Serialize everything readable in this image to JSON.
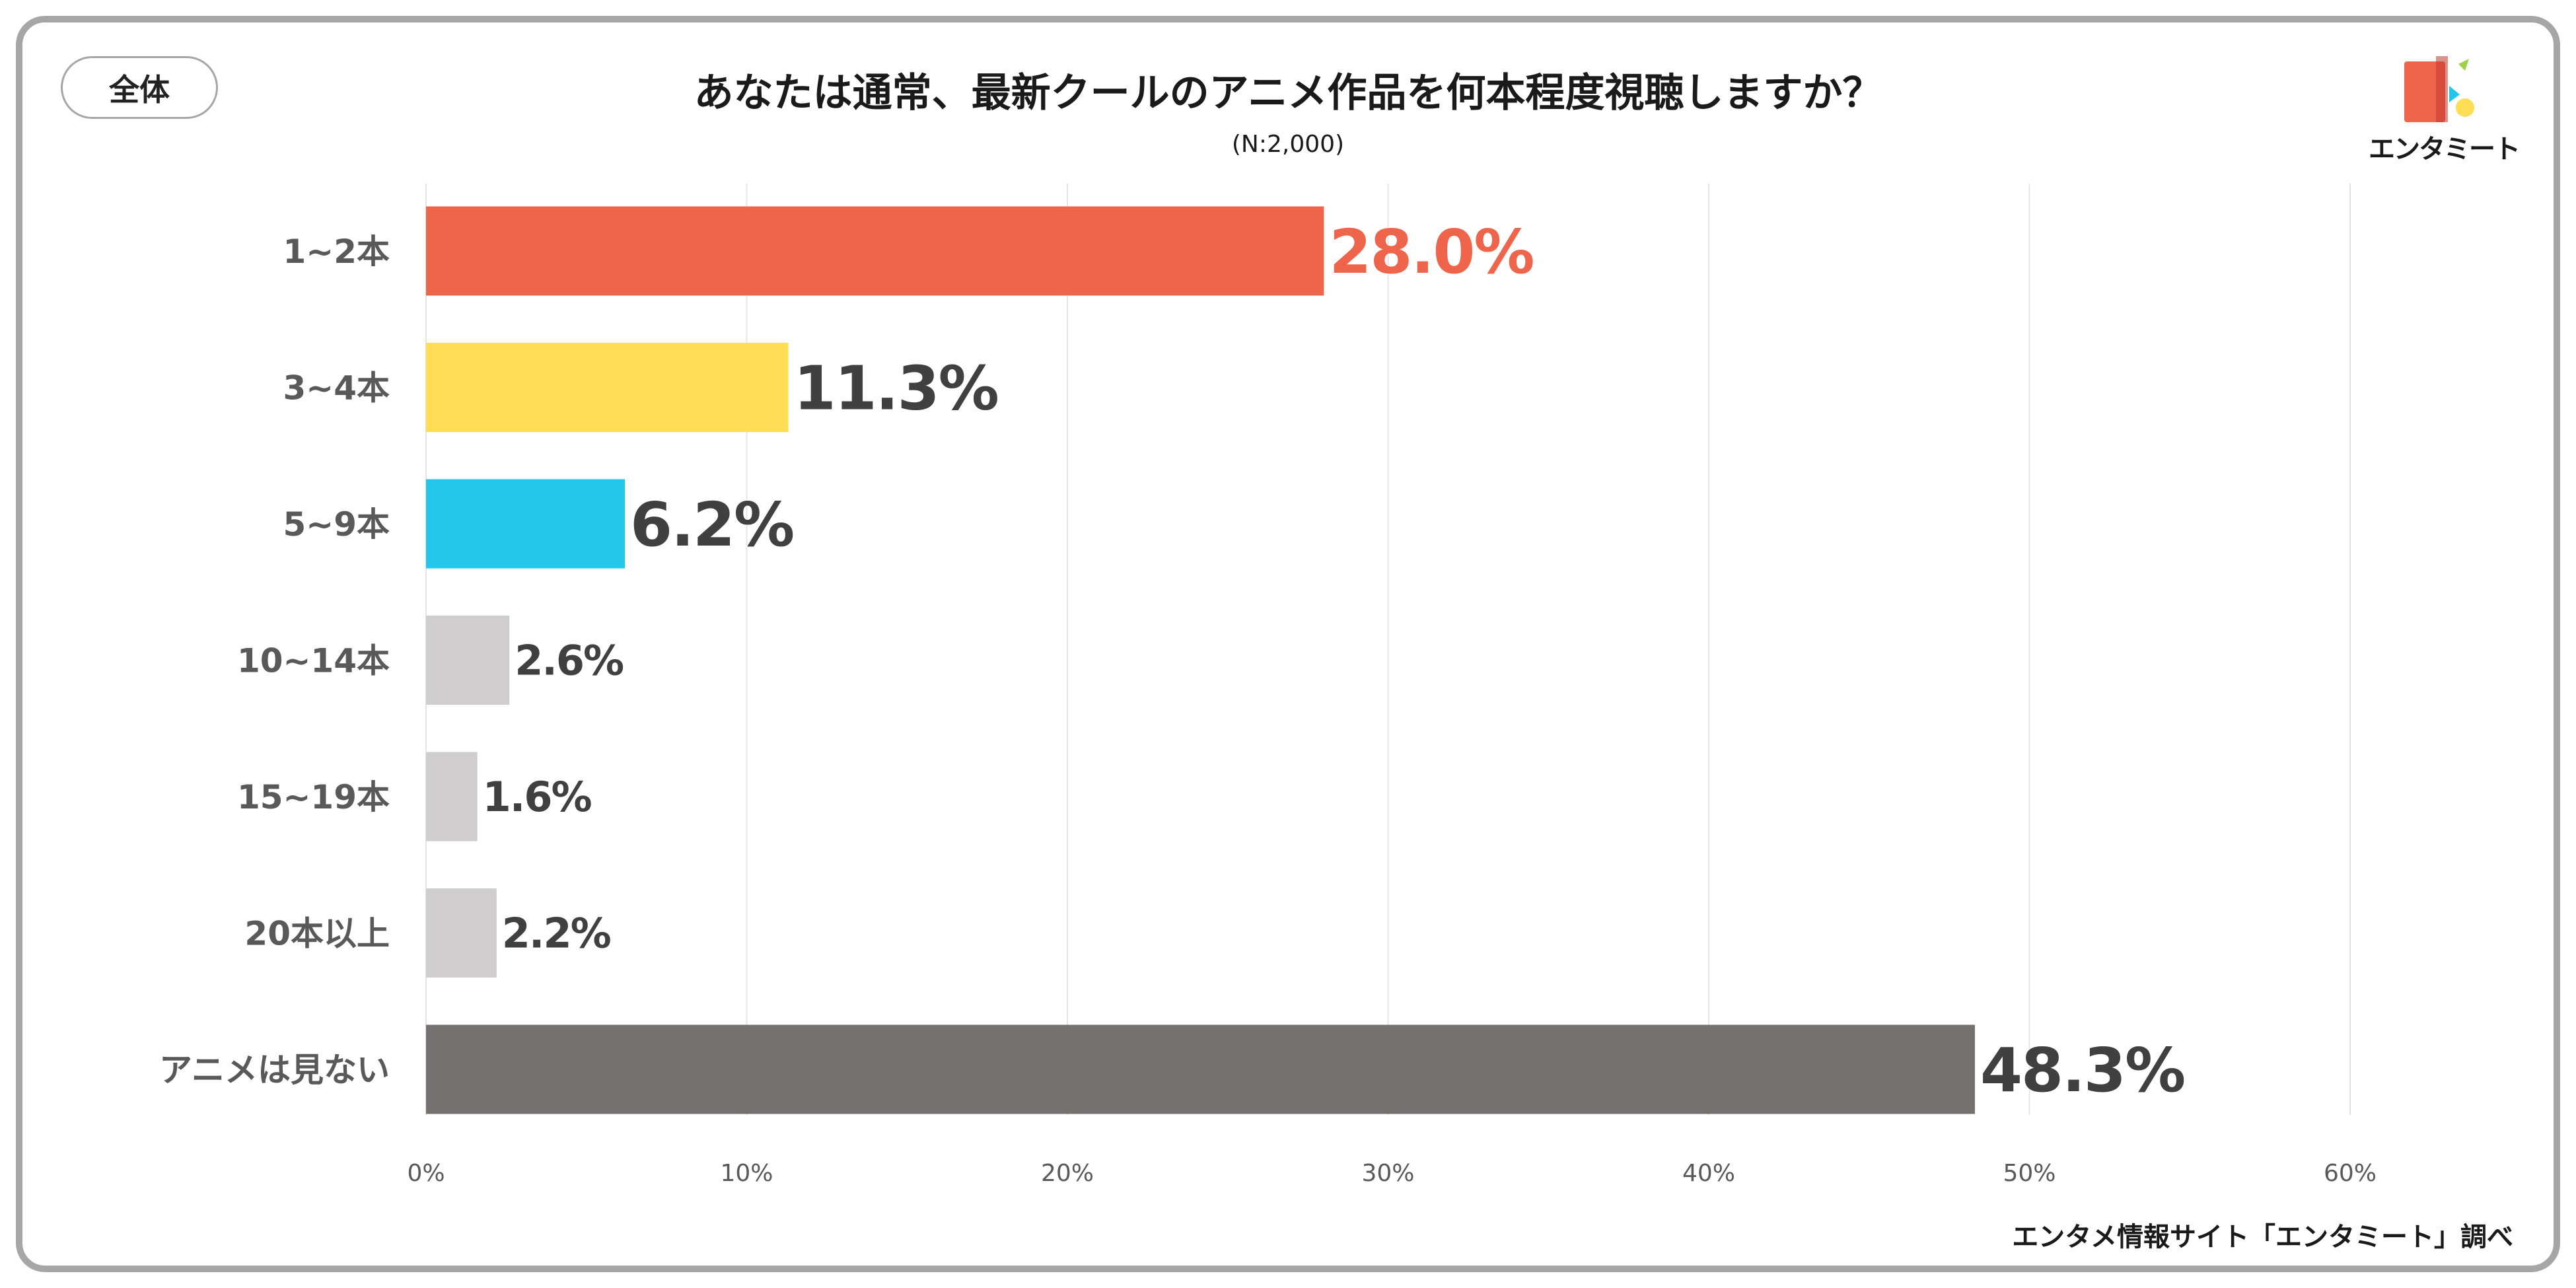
{
  "header": {
    "segment_label": "全体",
    "title": "あなたは通常、最新クールのアニメ作品を何本程度視聴しますか？",
    "subtitle": "(N:2,000)"
  },
  "logo": {
    "text": "エンタミート"
  },
  "footer": {
    "source": "エンタメ情報サイト「エンタミート」調べ"
  },
  "chart_data": {
    "type": "bar",
    "orientation": "horizontal",
    "title": "あなたは通常、最新クールのアニメ作品を何本程度視聴しますか？",
    "categories": [
      "1~2本",
      "3~4本",
      "5~9本",
      "10~14本",
      "15~19本",
      "20本以上",
      "アニメは見ない"
    ],
    "values": [
      28.0,
      11.3,
      6.2,
      2.6,
      1.6,
      2.2,
      48.3
    ],
    "value_labels": [
      "28.0%",
      "11.3%",
      "6.2%",
      "2.6%",
      "1.6%",
      "2.2%",
      "48.3%"
    ],
    "bar_colors": [
      "#ef654c",
      "#ffdd55",
      "#22c7ea",
      "#cfcdcd",
      "#cfcdcd",
      "#cfcdcd",
      "#767171"
    ],
    "label_colors": [
      "#ef654c",
      "#404040",
      "#404040",
      "#404040",
      "#404040",
      "#404040",
      "#404040"
    ],
    "label_emphasis": [
      "large",
      "large",
      "large",
      "small",
      "small",
      "small",
      "large"
    ],
    "xlim": [
      0,
      60
    ],
    "xticks": [
      0,
      10,
      20,
      30,
      40,
      50,
      60
    ],
    "xtick_labels": [
      "0%",
      "10%",
      "20%",
      "30%",
      "40%",
      "50%",
      "60%"
    ],
    "grid": true,
    "legend": "none"
  }
}
